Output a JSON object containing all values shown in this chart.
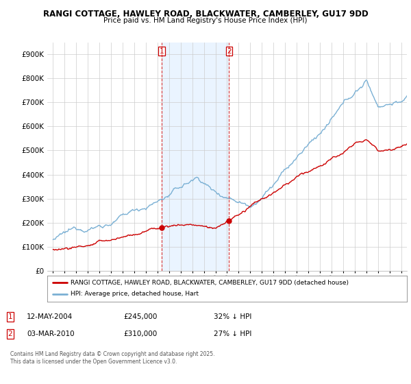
{
  "title1": "RANGI COTTAGE, HAWLEY ROAD, BLACKWATER, CAMBERLEY, GU17 9DD",
  "title2": "Price paid vs. HM Land Registry's House Price Index (HPI)",
  "background_color": "#ffffff",
  "plot_bg_color": "#ffffff",
  "legend_label1": "RANGI COTTAGE, HAWLEY ROAD, BLACKWATER, CAMBERLEY, GU17 9DD (detached house)",
  "legend_label2": "HPI: Average price, detached house, Hart",
  "line1_color": "#cc0000",
  "line2_color": "#7ab0d4",
  "vline_color": "#cc0000",
  "shade_color": "#ddeeff",
  "sale1_x": 2004.36,
  "sale2_x": 2010.17,
  "sale1": {
    "text": "12-MAY-2004",
    "amount": "£245,000",
    "pct": "32% ↓ HPI"
  },
  "sale2": {
    "text": "03-MAR-2010",
    "amount": "£310,000",
    "pct": "27% ↓ HPI"
  },
  "footer": "Contains HM Land Registry data © Crown copyright and database right 2025.\nThis data is licensed under the Open Government Licence v3.0.",
  "ylim": [
    0,
    950000
  ],
  "xlim": [
    1994.5,
    2025.5
  ],
  "yticks": [
    0,
    100000,
    200000,
    300000,
    400000,
    500000,
    600000,
    700000,
    800000,
    900000
  ]
}
